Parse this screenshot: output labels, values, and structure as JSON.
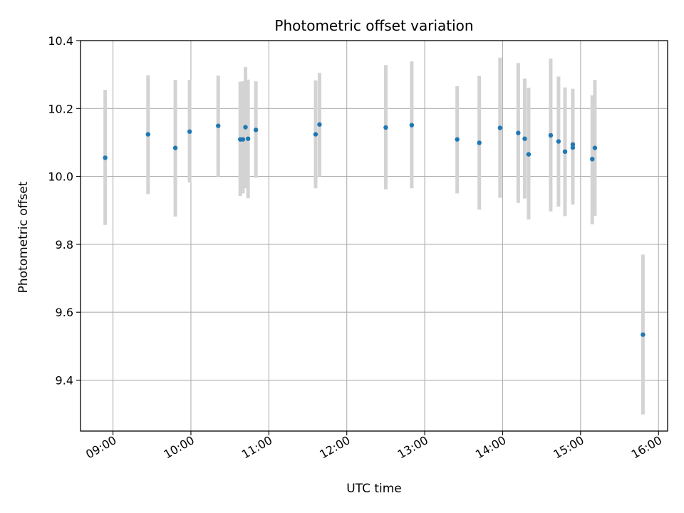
{
  "chart_data": {
    "type": "scatter",
    "title": "Photometric offset variation",
    "xlabel": "UTC time",
    "ylabel": "Photometric offset",
    "x_format": "HH:MM",
    "xlim": [
      "08:35",
      "16:07"
    ],
    "ylim": [
      9.25,
      10.4
    ],
    "xticks": [
      "09:00",
      "10:00",
      "11:00",
      "12:00",
      "13:00",
      "14:00",
      "15:00",
      "16:00"
    ],
    "yticks": [
      9.4,
      9.6,
      9.8,
      10.0,
      10.2,
      10.4
    ],
    "ytick_labels": [
      "9.4",
      "9.6",
      "9.8",
      "10.0",
      "10.2",
      "10.4"
    ],
    "grid": true,
    "point_color": "#1f77b4",
    "errorbar_color": "#d3d3d3",
    "points": [
      {
        "time": "08:54",
        "y": 10.055,
        "low": 9.857,
        "high": 10.255
      },
      {
        "time": "09:27",
        "y": 10.124,
        "low": 9.948,
        "high": 10.298
      },
      {
        "time": "09:48",
        "y": 10.084,
        "low": 9.882,
        "high": 10.284
      },
      {
        "time": "09:59",
        "y": 10.132,
        "low": 9.982,
        "high": 10.284
      },
      {
        "time": "10:21",
        "y": 10.149,
        "low": 10.0,
        "high": 10.297
      },
      {
        "time": "10:38",
        "y": 10.109,
        "low": 9.942,
        "high": 10.279
      },
      {
        "time": "10:40",
        "y": 10.109,
        "low": 9.95,
        "high": 10.28
      },
      {
        "time": "10:42",
        "y": 10.145,
        "low": 9.965,
        "high": 10.322
      },
      {
        "time": "10:44",
        "y": 10.111,
        "low": 9.936,
        "high": 10.285
      },
      {
        "time": "10:50",
        "y": 10.137,
        "low": 9.996,
        "high": 10.28
      },
      {
        "time": "11:36",
        "y": 10.124,
        "low": 9.965,
        "high": 10.283
      },
      {
        "time": "11:39",
        "y": 10.153,
        "low": 10.0,
        "high": 10.305
      },
      {
        "time": "12:30",
        "y": 10.144,
        "low": 9.962,
        "high": 10.328
      },
      {
        "time": "12:50",
        "y": 10.151,
        "low": 9.965,
        "high": 10.339
      },
      {
        "time": "13:25",
        "y": 10.109,
        "low": 9.95,
        "high": 10.266
      },
      {
        "time": "13:42",
        "y": 10.099,
        "low": 9.902,
        "high": 10.296
      },
      {
        "time": "13:58",
        "y": 10.143,
        "low": 9.937,
        "high": 10.35
      },
      {
        "time": "14:12",
        "y": 10.128,
        "low": 9.922,
        "high": 10.334
      },
      {
        "time": "14:17",
        "y": 10.111,
        "low": 9.935,
        "high": 10.288
      },
      {
        "time": "14:20",
        "y": 10.065,
        "low": 9.873,
        "high": 10.261
      },
      {
        "time": "14:37",
        "y": 10.121,
        "low": 9.897,
        "high": 10.347
      },
      {
        "time": "14:43",
        "y": 10.103,
        "low": 9.911,
        "high": 10.294
      },
      {
        "time": "14:48",
        "y": 10.073,
        "low": 9.883,
        "high": 10.262
      },
      {
        "time": "14:54",
        "y": 10.094,
        "low": 9.917,
        "high": 10.258
      },
      {
        "time": "14:54",
        "y": 10.085,
        "low": 9.93,
        "high": 10.24
      },
      {
        "time": "15:09",
        "y": 10.051,
        "low": 9.859,
        "high": 10.239
      },
      {
        "time": "15:11",
        "y": 10.084,
        "low": 9.884,
        "high": 10.284
      },
      {
        "time": "15:48",
        "y": 9.534,
        "low": 9.299,
        "high": 9.77
      }
    ]
  }
}
